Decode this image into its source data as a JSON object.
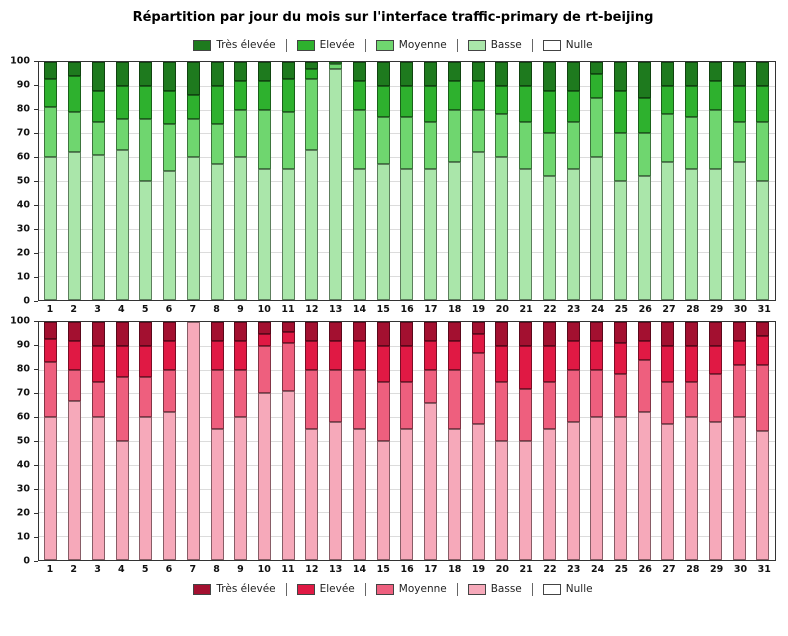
{
  "title": "Répartition par jour du mois sur l'interface traffic-primary de rt-beijing",
  "chart_data": [
    {
      "type": "bar",
      "stacked": true,
      "stack_order": "bottom-to-top",
      "legend_position": "top",
      "categories": [
        "1",
        "2",
        "3",
        "4",
        "5",
        "6",
        "7",
        "8",
        "9",
        "10",
        "11",
        "12",
        "13",
        "14",
        "15",
        "16",
        "17",
        "18",
        "19",
        "20",
        "21",
        "22",
        "23",
        "24",
        "25",
        "26",
        "27",
        "28",
        "29",
        "30",
        "31"
      ],
      "ylim": [
        0,
        100
      ],
      "yticks": [
        0,
        10,
        20,
        30,
        40,
        50,
        60,
        70,
        80,
        90,
        100
      ],
      "grid": true,
      "legend_order": [
        "Très élevée",
        "Elevée",
        "Moyenne",
        "Basse",
        "Nulle"
      ],
      "series": [
        {
          "name": "Basse",
          "color": "#aae6aa",
          "values": [
            60,
            62,
            61,
            63,
            50,
            54,
            60,
            57,
            60,
            55,
            55,
            63,
            97,
            55,
            57,
            55,
            55,
            58,
            62,
            60,
            55,
            52,
            55,
            60,
            50,
            52,
            58,
            55,
            55,
            58,
            50
          ]
        },
        {
          "name": "Moyenne",
          "color": "#6fd66f",
          "values": [
            21,
            17,
            14,
            13,
            26,
            20,
            16,
            17,
            20,
            25,
            24,
            30,
            2,
            25,
            20,
            22,
            20,
            22,
            18,
            18,
            20,
            18,
            20,
            25,
            20,
            18,
            20,
            22,
            25,
            17,
            25
          ]
        },
        {
          "name": "Elevée",
          "color": "#2eb12e",
          "values": [
            12,
            15,
            13,
            14,
            14,
            14,
            10,
            16,
            12,
            12,
            14,
            4,
            1,
            12,
            13,
            13,
            15,
            12,
            12,
            12,
            15,
            18,
            13,
            10,
            18,
            15,
            12,
            13,
            12,
            15,
            15
          ]
        },
        {
          "name": "Très élevée",
          "color": "#1e7a1e",
          "values": [
            7,
            6,
            12,
            10,
            10,
            12,
            14,
            10,
            8,
            8,
            7,
            3,
            0,
            8,
            10,
            10,
            10,
            8,
            8,
            10,
            10,
            12,
            12,
            5,
            12,
            15,
            10,
            10,
            8,
            10,
            10
          ]
        },
        {
          "name": "Nulle",
          "color": "#ffffff",
          "values": [
            0,
            0,
            0,
            0,
            0,
            0,
            0,
            0,
            0,
            0,
            0,
            0,
            0,
            0,
            0,
            0,
            0,
            0,
            0,
            0,
            0,
            0,
            0,
            0,
            0,
            0,
            0,
            0,
            0,
            0,
            0
          ]
        }
      ]
    },
    {
      "type": "bar",
      "stacked": true,
      "stack_order": "bottom-to-top",
      "legend_position": "bottom",
      "categories": [
        "1",
        "2",
        "3",
        "4",
        "5",
        "6",
        "7",
        "8",
        "9",
        "10",
        "11",
        "12",
        "13",
        "14",
        "15",
        "16",
        "17",
        "18",
        "19",
        "20",
        "21",
        "22",
        "23",
        "24",
        "25",
        "26",
        "27",
        "28",
        "29",
        "30",
        "31"
      ],
      "ylim": [
        0,
        100
      ],
      "yticks": [
        0,
        10,
        20,
        30,
        40,
        50,
        60,
        70,
        80,
        90,
        100
      ],
      "grid": true,
      "legend_order": [
        "Très élevée",
        "Elevée",
        "Moyenne",
        "Basse",
        "Nulle"
      ],
      "series": [
        {
          "name": "Basse",
          "color": "#f6a9ba",
          "values": [
            60,
            67,
            60,
            50,
            60,
            62,
            100,
            55,
            60,
            70,
            71,
            55,
            58,
            55,
            50,
            55,
            66,
            55,
            57,
            50,
            50,
            55,
            58,
            60,
            60,
            62,
            57,
            60,
            58,
            60,
            54
          ]
        },
        {
          "name": "Moyenne",
          "color": "#ee5f7e",
          "values": [
            23,
            13,
            15,
            27,
            17,
            18,
            0,
            25,
            20,
            20,
            20,
            25,
            22,
            25,
            25,
            20,
            14,
            25,
            30,
            25,
            22,
            20,
            22,
            20,
            18,
            22,
            18,
            15,
            20,
            22,
            28
          ]
        },
        {
          "name": "Elevée",
          "color": "#e01944",
          "values": [
            10,
            12,
            15,
            13,
            13,
            12,
            0,
            12,
            12,
            5,
            5,
            12,
            12,
            12,
            15,
            15,
            12,
            12,
            8,
            15,
            18,
            15,
            12,
            12,
            13,
            8,
            15,
            15,
            12,
            10,
            12
          ]
        },
        {
          "name": "Très élevée",
          "color": "#a31030",
          "values": [
            7,
            8,
            10,
            10,
            10,
            8,
            0,
            8,
            8,
            5,
            4,
            8,
            8,
            8,
            10,
            10,
            8,
            8,
            5,
            10,
            10,
            10,
            8,
            8,
            9,
            8,
            10,
            10,
            10,
            8,
            6
          ]
        },
        {
          "name": "Nulle",
          "color": "#ffffff",
          "values": [
            0,
            0,
            0,
            0,
            0,
            0,
            0,
            0,
            0,
            0,
            0,
            0,
            0,
            0,
            0,
            0,
            0,
            0,
            0,
            0,
            0,
            0,
            0,
            0,
            0,
            0,
            0,
            0,
            0,
            0,
            0
          ]
        }
      ]
    }
  ]
}
